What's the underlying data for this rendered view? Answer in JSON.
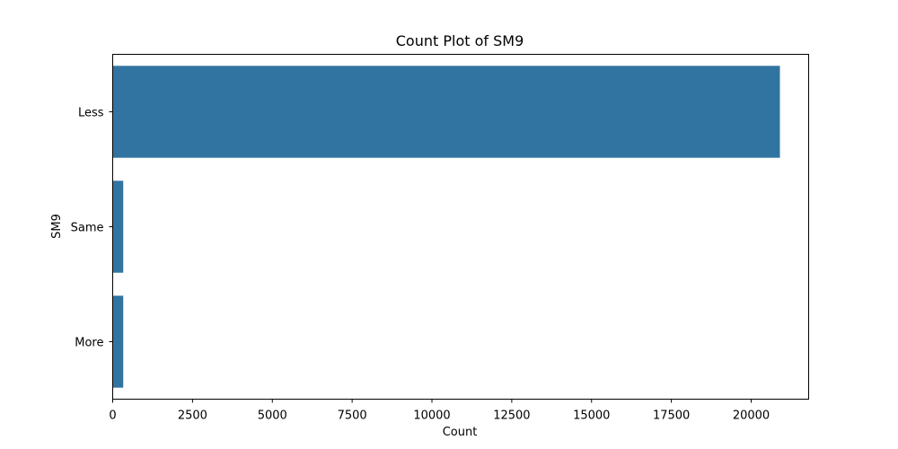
{
  "chart_data": {
    "type": "bar",
    "orientation": "horizontal",
    "title": "Count Plot of SM9",
    "xlabel": "Count",
    "ylabel": "SM9",
    "categories": [
      "Less",
      "Same",
      "More"
    ],
    "values": [
      20900,
      330,
      330
    ],
    "xlim": [
      0,
      21800
    ],
    "xticks": [
      0,
      2500,
      5000,
      7500,
      10000,
      12500,
      15000,
      17500,
      20000
    ],
    "bar_color": "#3274a1",
    "grid": false,
    "legend": "none"
  }
}
